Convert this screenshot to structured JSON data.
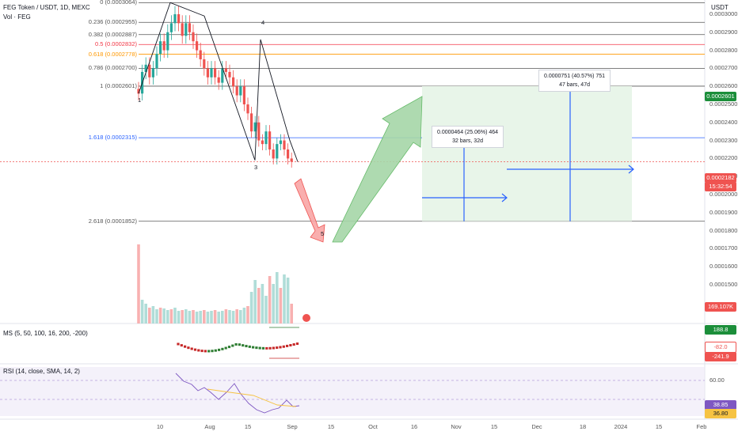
{
  "header": {
    "symbol_line": "FEG Token / USDT, 1D, MEXC",
    "volume_label": "Vol · FEG",
    "currency": "USDT"
  },
  "colors": {
    "up": "#26a69a",
    "down": "#ef5350",
    "fib_gray": "#555555",
    "fib_blue": "#2962ff",
    "fib_red": "#f23645",
    "fib_orange": "#ff9800",
    "target_green": "#81c784",
    "rsi_line": "#7e57c2"
  },
  "price_axis": {
    "labels": [
      "0.0003000",
      "0.0002900",
      "0.0002800",
      "0.0002700",
      "0.0002600",
      "0.0002500",
      "0.0002400",
      "0.0002300",
      "0.0002200",
      "0.0002100",
      "0.0002000",
      "0.0001900",
      "0.0001800",
      "0.0001700",
      "0.0001600",
      "0.0001500"
    ],
    "current_price": "0.0002182",
    "countdown": "15:32:54",
    "target_price": "0.0002601",
    "volume_value": "169.107K"
  },
  "fib_levels": [
    {
      "label": "0 (0.0003064)",
      "price": 0.0003064,
      "color": "#555555"
    },
    {
      "label": "0.236 (0.0002955)",
      "price": 0.0002955,
      "color": "#555555"
    },
    {
      "label": "0.382 (0.0002887)",
      "price": 0.0002887,
      "color": "#555555"
    },
    {
      "label": "0.5 (0.0002832)",
      "price": 0.0002832,
      "color": "#f23645"
    },
    {
      "label": "0.618 (0.0002778)",
      "price": 0.0002778,
      "color": "#ff9800"
    },
    {
      "label": "0.786 (0.0002700)",
      "price": 0.00027,
      "color": "#555555"
    },
    {
      "label": "1 (0.0002601)",
      "price": 0.0002601,
      "color": "#555555"
    },
    {
      "label": "1.618 (0.0002315)",
      "price": 0.0002315,
      "color": "#2962ff"
    },
    {
      "label": "2.618 (0.0001852)",
      "price": 0.0001852,
      "color": "#555555"
    }
  ],
  "wave_labels": [
    {
      "label": "1",
      "price": 0.000256
    },
    {
      "label": "3",
      "price": 0.000219
    },
    {
      "label": "4",
      "price": 0.000291
    },
    {
      "label": "5",
      "price": 0.000182
    }
  ],
  "measures": [
    {
      "line1": "0.0000464 (25.06%) 464",
      "line2": "32 bars, 32d"
    },
    {
      "line1": "0.0000751 (40.57%) 751",
      "line2": "47 bars, 47d"
    }
  ],
  "date_axis": [
    "10",
    "Aug",
    "15",
    "Sep",
    "15",
    "Oct",
    "16",
    "Nov",
    "15",
    "Dec",
    "18",
    "2024",
    "15",
    "Feb"
  ],
  "ms_indicator": {
    "label": "MS (5, 50, 100, 16, 200, -200)",
    "values": [
      "188.8",
      "-82.0",
      "-241.9"
    ]
  },
  "rsi_indicator": {
    "label": "RSI (14, close, SMA, 14, 2)",
    "level": "60.00",
    "values": [
      "38.85",
      "36.80"
    ]
  },
  "chart_data": {
    "type": "candlestick",
    "title": "FEG Token / USDT, 1D, MEXC",
    "y_axis_unit": "USDT",
    "ylim": [
      0.00015,
      0.000307
    ],
    "x_axis_labels": [
      "10",
      "Aug",
      "15",
      "Sep",
      "15",
      "Oct",
      "16",
      "Nov",
      "15",
      "Dec",
      "18",
      "2024",
      "15",
      "Feb"
    ],
    "candles_close": [
      0.000256,
      0.000268,
      0.000272,
      0.000265,
      0.00027,
      0.000278,
      0.000285,
      0.00028,
      0.00029,
      0.000295,
      0.0003,
      0.000295,
      0.000288,
      0.000295,
      0.00029,
      0.000285,
      0.00028,
      0.000275,
      0.00027,
      0.000265,
      0.00027,
      0.000265,
      0.000262,
      0.00027,
      0.000268,
      0.000265,
      0.00026,
      0.000255,
      0.00026,
      0.00025,
      0.000245,
      0.000235,
      0.00024,
      0.00023,
      0.000228,
      0.000235,
      0.000225,
      0.00022,
      0.000228,
      0.00023,
      0.000225,
      0.00022,
      0.0002182
    ],
    "current_price": 0.0002182,
    "projection_path": [
      [
        0.0002182,
        0.0001852
      ],
      [
        0.0001852,
        0.0002601
      ]
    ],
    "measures": [
      {
        "change": 4.64e-05,
        "percent": 25.06,
        "bars": 32
      },
      {
        "change": 7.51e-05,
        "percent": 40.57,
        "bars": 47
      }
    ],
    "volume_last": "169.107K",
    "rsi_last": [
      38.85,
      36.8
    ],
    "ms_last": [
      188.8,
      -82.0,
      -241.9
    ]
  }
}
